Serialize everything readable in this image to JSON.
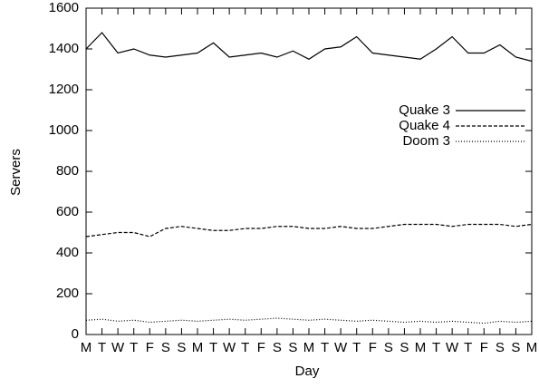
{
  "chart_data": {
    "type": "line",
    "xlabel": "Day",
    "ylabel": "Servers",
    "categories": [
      "M",
      "T",
      "W",
      "T",
      "F",
      "S",
      "S",
      "M",
      "T",
      "W",
      "T",
      "F",
      "S",
      "S",
      "M",
      "T",
      "W",
      "T",
      "F",
      "S",
      "S",
      "M",
      "T",
      "W",
      "T",
      "F",
      "S",
      "S",
      "M"
    ],
    "series": [
      {
        "name": "Quake 3",
        "color": "#000000",
        "style": "solid",
        "values": [
          1400,
          1480,
          1380,
          1400,
          1370,
          1360,
          1370,
          1380,
          1430,
          1360,
          1370,
          1380,
          1360,
          1390,
          1350,
          1400,
          1410,
          1460,
          1380,
          1370,
          1360,
          1350,
          1400,
          1460,
          1380,
          1380,
          1420,
          1360,
          1340
        ]
      },
      {
        "name": "Quake 4",
        "color": "#000000",
        "style": "dashed",
        "values": [
          480,
          490,
          500,
          500,
          480,
          520,
          530,
          520,
          510,
          510,
          520,
          520,
          530,
          530,
          520,
          520,
          530,
          520,
          520,
          530,
          540,
          540,
          540,
          530,
          540,
          540,
          540,
          530,
          540
        ]
      },
      {
        "name": "Doom 3",
        "color": "#000000",
        "style": "dotted",
        "values": [
          70,
          75,
          65,
          70,
          60,
          65,
          70,
          65,
          70,
          75,
          70,
          75,
          80,
          75,
          70,
          75,
          70,
          65,
          70,
          65,
          60,
          65,
          60,
          65,
          60,
          55,
          65,
          60,
          65
        ]
      }
    ],
    "ylim": [
      0,
      1600
    ],
    "yticks": [
      0,
      200,
      400,
      600,
      800,
      1000,
      1200,
      1400,
      1600
    ],
    "legend": "upper right"
  }
}
